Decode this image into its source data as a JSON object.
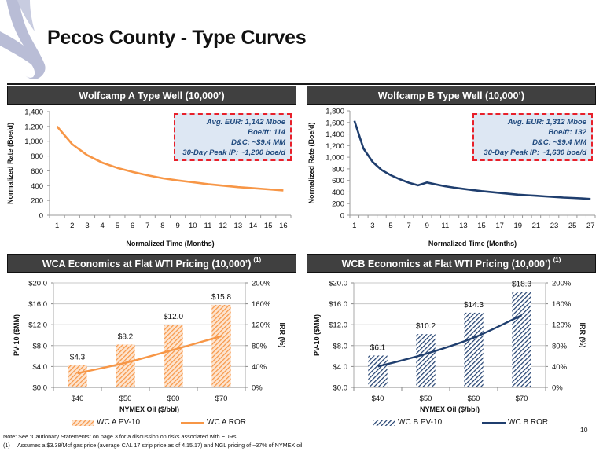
{
  "page": {
    "title": "Pecos County - Type Curves",
    "page_number": "10"
  },
  "footnotes": {
    "note": "Note: See “Cautionary Statements” on page 3 for a discussion on risks associated with EURs.",
    "fn1_marker": "(1)",
    "fn1_text": "Assumes a $3.38/Mcf gas price (average CAL 17 strip price as of 4.15.17) and NGL pricing of ~37% of NYMEX oil."
  },
  "colors": {
    "orange": "#f79646",
    "navy": "#1f3e6e",
    "header_bg": "#404040",
    "kpi_border": "#e8202a",
    "kpi_bg": "#dde7f3",
    "kpi_text": "#1f497d"
  },
  "panels": {
    "wca_type": {
      "header": "Wolfcamp A Type Well (10,000’)",
      "kpi": {
        "line1": "Avg. EUR:  1,142 Mboe",
        "line2": "Boe/ft:  114",
        "line3": "D&C:  ~$9.4 MM",
        "line4": "30-Day Peak IP: ~1,200 boe/d"
      }
    },
    "wcb_type": {
      "header": "Wolfcamp B Type Well (10,000’)",
      "kpi": {
        "line1": "Avg. EUR:  1,312 Mboe",
        "line2": "Boe/ft:  132",
        "line3": "D&C:  ~$9.4 MM",
        "line4": "30-Day Peak IP: ~1,630 boe/d"
      }
    },
    "wca_econ": {
      "header": "WCA Economics at Flat WTI Pricing (10,000’)",
      "header_sup": "(1)",
      "legend_bar": "WC A PV-10",
      "legend_line": "WC A ROR"
    },
    "wcb_econ": {
      "header": "WCB Economics at Flat WTI Pricing (10,000’)",
      "header_sup": "(1)",
      "legend_bar": "WC B PV-10",
      "legend_line": "WC B ROR"
    }
  },
  "chart_data": [
    {
      "id": "wca_type",
      "type": "line",
      "title": "Wolfcamp A Type Well (10,000’)",
      "xlabel": "Normalized Time (Months)",
      "ylabel": "Normalized Rate (Boe/d)",
      "x": [
        1,
        2,
        3,
        4,
        5,
        6,
        7,
        8,
        9,
        10,
        11,
        12,
        13,
        14,
        15,
        16
      ],
      "x_tick_labels": [
        "1",
        "2",
        "3",
        "4",
        "5",
        "6",
        "7",
        "8",
        "9",
        "10",
        "11",
        "12",
        "13",
        "14",
        "15",
        "16"
      ],
      "ylim": [
        0,
        1400
      ],
      "y_ticks": [
        0,
        200,
        400,
        600,
        800,
        1000,
        1200,
        1400
      ],
      "y_tick_labels": [
        "0",
        "200",
        "400",
        "600",
        "800",
        "1,000",
        "1,200",
        "1,400"
      ],
      "grid": false,
      "series": [
        {
          "name": "Wolfcamp A",
          "color": "#f79646",
          "values": [
            1200,
            960,
            810,
            710,
            640,
            585,
            540,
            500,
            470,
            445,
            420,
            400,
            380,
            365,
            350,
            335
          ]
        }
      ]
    },
    {
      "id": "wcb_type",
      "type": "line",
      "title": "Wolfcamp B Type Well (10,000’)",
      "xlabel": "Normalized Time (Months)",
      "ylabel": "Normalized Rate (Boe/d)",
      "x": [
        1,
        2,
        3,
        4,
        5,
        6,
        7,
        8,
        9,
        10,
        11,
        12,
        13,
        14,
        15,
        16,
        17,
        18,
        19,
        20,
        21,
        22,
        23,
        24,
        25,
        26,
        27
      ],
      "x_tick_labels": [
        "1",
        "3",
        "5",
        "7",
        "9",
        "11",
        "13",
        "15",
        "17",
        "19",
        "21",
        "23",
        "25",
        "27"
      ],
      "ylim": [
        0,
        1800
      ],
      "y_ticks": [
        0,
        200,
        400,
        600,
        800,
        1000,
        1200,
        1400,
        1600,
        1800
      ],
      "y_tick_labels": [
        "0",
        "200",
        "400",
        "600",
        "800",
        "1,000",
        "1,200",
        "1,400",
        "1,600",
        "1,800"
      ],
      "grid": false,
      "series": [
        {
          "name": "Wolfcamp B",
          "color": "#1f3e6e",
          "values": [
            1630,
            1150,
            920,
            780,
            690,
            620,
            560,
            515,
            565,
            530,
            500,
            475,
            455,
            435,
            415,
            400,
            385,
            370,
            355,
            345,
            335,
            325,
            315,
            305,
            298,
            290,
            280
          ]
        }
      ]
    },
    {
      "id": "wca_econ",
      "type": "bar",
      "title": "WCA Economics at Flat WTI Pricing (10,000’) (1)",
      "xlabel": "NYMEX Oil ($/bbl)",
      "ylabel": "PV-10 ($MM)",
      "y2label": "IRR (%)",
      "categories": [
        "$40",
        "$50",
        "$60",
        "$70"
      ],
      "ylim": [
        0,
        20
      ],
      "y_tick_labels": [
        "$0.0",
        "$4.0",
        "$8.0",
        "$12.0",
        "$16.0",
        "$20.0"
      ],
      "y2lim": [
        0,
        200
      ],
      "y2_tick_labels": [
        "0%",
        "40%",
        "80%",
        "120%",
        "160%",
        "200%"
      ],
      "grid": true,
      "legend": "bottom",
      "series": [
        {
          "name": "WC A PV-10",
          "kind": "bar",
          "axis": "left",
          "color": "#f79646",
          "values": [
            4.3,
            8.2,
            12.0,
            15.8
          ],
          "labels": [
            "$4.3",
            "$8.2",
            "$12.0",
            "$15.8"
          ]
        },
        {
          "name": "WC A ROR",
          "kind": "line",
          "axis": "right",
          "color": "#f79646",
          "values": [
            27,
            47,
            72,
            98
          ]
        }
      ]
    },
    {
      "id": "wcb_econ",
      "type": "bar",
      "title": "WCB Economics at Flat WTI Pricing (10,000’) (1)",
      "xlabel": "NYMEX Oil ($/bbl)",
      "ylabel": "PV-10 ($MM)",
      "y2label": "IRR (%)",
      "categories": [
        "$40",
        "$50",
        "$60",
        "$70"
      ],
      "ylim": [
        0,
        20
      ],
      "y_tick_labels": [
        "$0.0",
        "$4.0",
        "$8.0",
        "$12.0",
        "$16.0",
        "$20.0"
      ],
      "y2lim": [
        0,
        200
      ],
      "y2_tick_labels": [
        "0%",
        "40%",
        "80%",
        "120%",
        "160%",
        "200%"
      ],
      "grid": true,
      "legend": "bottom",
      "series": [
        {
          "name": "WC B PV-10",
          "kind": "bar",
          "axis": "left",
          "color": "#1f3e6e",
          "values": [
            6.1,
            10.2,
            14.3,
            18.3
          ],
          "labels": [
            "$6.1",
            "$10.2",
            "$14.3",
            "$18.3"
          ]
        },
        {
          "name": "WC B ROR",
          "kind": "line",
          "axis": "right",
          "color": "#1f3e6e",
          "values": [
            40,
            64,
            95,
            138
          ]
        }
      ]
    }
  ]
}
